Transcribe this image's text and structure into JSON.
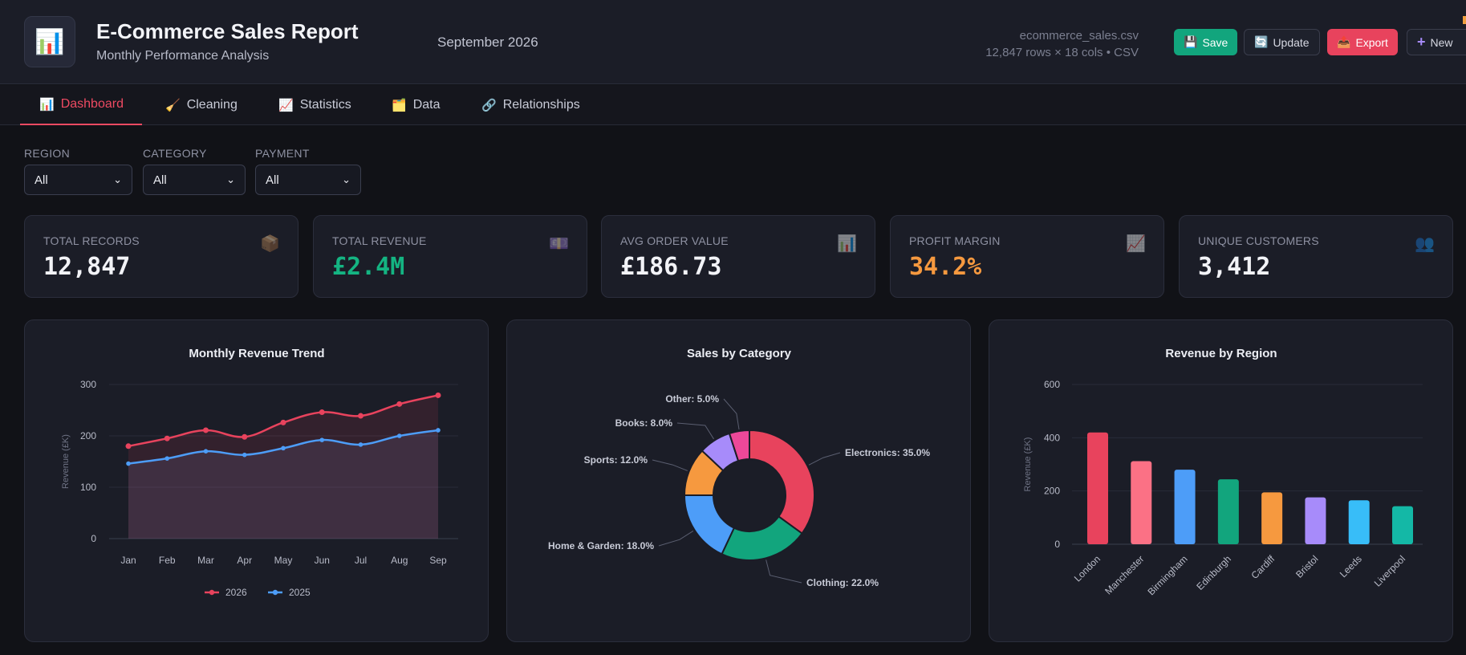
{
  "header": {
    "title": "E-Commerce Sales Report",
    "subtitle": "Monthly Performance Analysis",
    "period": "September 2026",
    "file_name": "ecommerce_sales.csv",
    "file_meta": "12,847 rows × 18 cols • CSV",
    "logo_icon": "bar-chart-icon",
    "buttons": {
      "save": "Save",
      "update": "Update",
      "export": "Export",
      "new": "New"
    }
  },
  "tabs": [
    {
      "label": "Dashboard",
      "icon": "📊",
      "active": true
    },
    {
      "label": "Cleaning",
      "icon": "🧹",
      "active": false
    },
    {
      "label": "Statistics",
      "icon": "📈",
      "active": false
    },
    {
      "label": "Data",
      "icon": "🗂️",
      "active": false
    },
    {
      "label": "Relationships",
      "icon": "🔗",
      "active": false
    }
  ],
  "filters": [
    {
      "label": "REGION",
      "value": "All"
    },
    {
      "label": "CATEGORY",
      "value": "All"
    },
    {
      "label": "PAYMENT",
      "value": "All"
    }
  ],
  "kpis": [
    {
      "label": "TOTAL RECORDS",
      "value": "12,847",
      "icon": "📦",
      "color": "#f2f3f7"
    },
    {
      "label": "TOTAL REVENUE",
      "value": "£2.4M",
      "icon": "💷",
      "color": "#14b482"
    },
    {
      "label": "AVG ORDER VALUE",
      "value": "£186.73",
      "icon": "📊",
      "color": "#f2f3f7"
    },
    {
      "label": "PROFIT MARGIN",
      "value": "34.2%",
      "icon": "📈",
      "color": "#f6993f"
    },
    {
      "label": "UNIQUE CUSTOMERS",
      "value": "3,412",
      "icon": "👥",
      "color": "#f2f3f7"
    }
  ],
  "chart_data": [
    {
      "type": "line",
      "title": "Monthly Revenue Trend",
      "ylabel": "Revenue (£K)",
      "xlabel": "",
      "categories": [
        "Jan",
        "Feb",
        "Mar",
        "Apr",
        "May",
        "Jun",
        "Jul",
        "Aug",
        "Sep"
      ],
      "ylim": [
        0,
        300
      ],
      "yticks": [
        0,
        100,
        200,
        300
      ],
      "series": [
        {
          "name": "2026",
          "color": "#e8435d",
          "values": [
            180,
            195,
            211,
            198,
            226,
            246,
            239,
            262,
            279
          ]
        },
        {
          "name": "2025",
          "color": "#4d9df8",
          "values": [
            146,
            156,
            170,
            163,
            176,
            192,
            183,
            200,
            211
          ]
        }
      ],
      "legend": "bottom",
      "grid": true
    },
    {
      "type": "pie",
      "title": "Sales by Category",
      "donut": true,
      "slices": [
        {
          "label": "Electronics: 35.0%",
          "value": 35.0,
          "color": "#e8435d"
        },
        {
          "label": "Clothing: 22.0%",
          "value": 22.0,
          "color": "#12a57d"
        },
        {
          "label": "Home & Garden: 18.0%",
          "value": 18.0,
          "color": "#4d9df8"
        },
        {
          "label": "Sports: 12.0%",
          "value": 12.0,
          "color": "#f6993f"
        },
        {
          "label": "Books: 8.0%",
          "value": 8.0,
          "color": "#a78bfa"
        },
        {
          "label": "Other: 5.0%",
          "value": 5.0,
          "color": "#ec4899"
        }
      ]
    },
    {
      "type": "bar",
      "title": "Revenue by Region",
      "ylabel": "Revenue (£K)",
      "xlabel": "",
      "categories": [
        "London",
        "Manchester",
        "Birmingham",
        "Edinburgh",
        "Cardiff",
        "Bristol",
        "Leeds",
        "Liverpool"
      ],
      "values": [
        420,
        312,
        280,
        244,
        195,
        176,
        165,
        143
      ],
      "colors": [
        "#e8435d",
        "#fb7185",
        "#4d9df8",
        "#12a57d",
        "#f6993f",
        "#a78bfa",
        "#38bdf8",
        "#14b8a6"
      ],
      "ylim": [
        0,
        600
      ],
      "yticks": [
        0,
        200,
        400,
        600
      ],
      "grid": true
    }
  ]
}
